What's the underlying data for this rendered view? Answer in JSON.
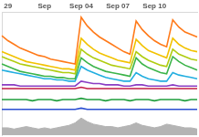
{
  "chart_data": {
    "type": "line",
    "categories": [
      null,
      "29",
      null,
      null,
      null,
      null,
      null,
      "Sep",
      null,
      null,
      null,
      null,
      null,
      "Sep 04",
      null,
      null,
      null,
      null,
      null,
      "Sep 07",
      null,
      null,
      null,
      null,
      null,
      "Sep 10",
      null,
      null,
      null,
      null,
      null,
      null,
      null
    ],
    "ylim": [
      0,
      100
    ],
    "grid": false,
    "tick_labels": "x",
    "series": [
      {
        "type": "area",
        "color": "#b4b4b4",
        "values": [
          6,
          6,
          5,
          6,
          7,
          6,
          5,
          6,
          5,
          6,
          7,
          8,
          10,
          14,
          11,
          9,
          8,
          7,
          7,
          6,
          7,
          8,
          10,
          8,
          7,
          6,
          7,
          9,
          8,
          7,
          6,
          6,
          5
        ]
      },
      {
        "color": "#ff7a1a",
        "values": [
          81,
          77,
          74,
          71,
          69,
          67,
          65,
          64,
          62,
          61,
          60,
          59,
          58,
          96,
          89,
          84,
          80,
          77,
          74,
          71,
          68,
          66,
          93,
          86,
          81,
          77,
          74,
          72,
          94,
          88,
          84,
          82,
          80
        ]
      },
      {
        "color": "#f2c200",
        "values": [
          68,
          66,
          64,
          62,
          60,
          59,
          58,
          57,
          56,
          55,
          54,
          54,
          53,
          79,
          74,
          70,
          67,
          65,
          63,
          61,
          60,
          59,
          78,
          73,
          69,
          67,
          65,
          63,
          79,
          74,
          71,
          69,
          68
        ]
      },
      {
        "color": "#b0cc10",
        "values": [
          64,
          62,
          60,
          58,
          57,
          56,
          55,
          54,
          53,
          52,
          51,
          51,
          50,
          70,
          66,
          63,
          61,
          59,
          57,
          56,
          55,
          54,
          68,
          64,
          61,
          59,
          57,
          56,
          70,
          66,
          64,
          62,
          61
        ]
      },
      {
        "color": "#3cb44a",
        "values": [
          58,
          56,
          54,
          52,
          51,
          50,
          49,
          48,
          48,
          47,
          47,
          46,
          46,
          63,
          59,
          56,
          54,
          52,
          51,
          50,
          49,
          48,
          63,
          58,
          55,
          53,
          51,
          50,
          64,
          60,
          57,
          55,
          53
        ]
      },
      {
        "color": "#22aee0",
        "values": [
          53,
          52,
          51,
          50,
          49,
          48,
          47,
          46,
          46,
          45,
          45,
          44,
          44,
          56,
          53,
          51,
          49,
          47,
          46,
          45,
          44,
          44,
          51,
          48,
          46,
          45,
          44,
          44,
          51,
          49,
          48,
          47,
          46
        ]
      },
      {
        "color": "#8a3cc4",
        "values": [
          41,
          41,
          41,
          40,
          40,
          40,
          40,
          40,
          40,
          40,
          40,
          40,
          40,
          44,
          43,
          42,
          42,
          41,
          41,
          41,
          40,
          40,
          41,
          41,
          40,
          40,
          40,
          40,
          41,
          40,
          40,
          40,
          40
        ]
      },
      {
        "color": "#c41e46",
        "values": [
          38,
          38,
          38,
          38,
          38,
          38,
          38,
          38,
          38,
          38,
          38,
          38,
          38,
          39,
          38,
          38,
          38,
          38,
          38,
          38,
          38,
          38,
          38,
          38,
          38,
          38,
          38,
          38,
          38,
          38,
          38,
          38,
          38
        ]
      },
      {
        "color": "#1f9e3c",
        "values": [
          29,
          29,
          29,
          29,
          29,
          28,
          29,
          29,
          29,
          28,
          29,
          29,
          29,
          30,
          29,
          29,
          29,
          28,
          29,
          29,
          29,
          28,
          29,
          29,
          29,
          28,
          29,
          29,
          29,
          29,
          28,
          29,
          29
        ]
      },
      {
        "color": "#2a4fd2",
        "values": [
          21,
          21,
          21,
          21,
          21,
          21,
          21,
          21,
          21,
          21,
          21,
          21,
          21,
          22,
          21,
          21,
          21,
          21,
          21,
          21,
          21,
          21,
          21,
          21,
          21,
          21,
          21,
          21,
          21,
          21,
          21,
          21,
          21
        ]
      }
    ]
  }
}
